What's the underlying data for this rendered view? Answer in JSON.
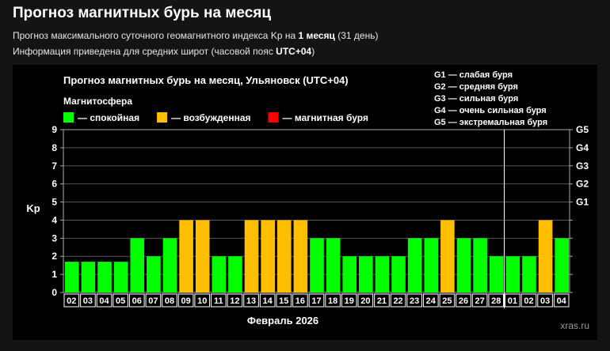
{
  "header": {
    "title": "Прогноз магнитных бурь на месяц",
    "subtitle1_pre": "Прогноз максимального суточного геомагнитного индекса Kp на ",
    "subtitle1_bold": "1 месяц",
    "subtitle1_post": " (31 день)",
    "subtitle2_pre": "Информация приведена для средних широт (часовой пояс ",
    "subtitle2_bold": "UTC+04",
    "subtitle2_post": ")"
  },
  "colors": {
    "calm": "#00ff00",
    "excited": "#ffbf00",
    "storm": "#ff0000",
    "background": "#000000",
    "grid": "#555555"
  },
  "chart_data": {
    "type": "bar",
    "title": "Прогноз магнитных бурь на месяц, Ульяновск (UTC+04)",
    "xlabel": "Февраль 2026",
    "ylabel": "Kp",
    "ylim": [
      0,
      9
    ],
    "yticks": [
      "0",
      "1",
      "2",
      "3",
      "4",
      "5",
      "6",
      "7",
      "8",
      "9"
    ],
    "grid": true,
    "legend_title": "Магнитосфера",
    "legend": [
      {
        "key": "calm",
        "label": "— спокойная"
      },
      {
        "key": "excited",
        "label": "— возбужденная"
      },
      {
        "key": "storm",
        "label": "— магнитная буря"
      }
    ],
    "g_scale_labels": [
      {
        "level": "G1",
        "kp": 5
      },
      {
        "level": "G2",
        "kp": 6
      },
      {
        "level": "G3",
        "kp": 7
      },
      {
        "level": "G4",
        "kp": 8
      },
      {
        "level": "G5",
        "kp": 9
      }
    ],
    "g_scale_legend": [
      "G1 — слабая буря",
      "G2 — средняя буря",
      "G3 — сильная буря",
      "G4 — очень сильная буря",
      "G5 — экстремальная буря"
    ],
    "categories": [
      "02",
      "03",
      "04",
      "05",
      "06",
      "07",
      "08",
      "09",
      "10",
      "11",
      "12",
      "13",
      "14",
      "15",
      "16",
      "17",
      "18",
      "19",
      "20",
      "21",
      "22",
      "23",
      "24",
      "25",
      "26",
      "27",
      "28",
      "01",
      "02",
      "03",
      "04"
    ],
    "values": [
      1.7,
      1.7,
      1.7,
      1.7,
      3,
      2,
      3,
      4,
      4,
      2,
      2,
      4,
      4,
      4,
      4,
      3,
      3,
      2,
      2,
      2,
      2,
      3,
      3,
      4,
      3,
      3,
      2,
      2,
      2,
      4,
      3
    ],
    "month_divider_after": "28",
    "watermark": "xras.ru"
  }
}
